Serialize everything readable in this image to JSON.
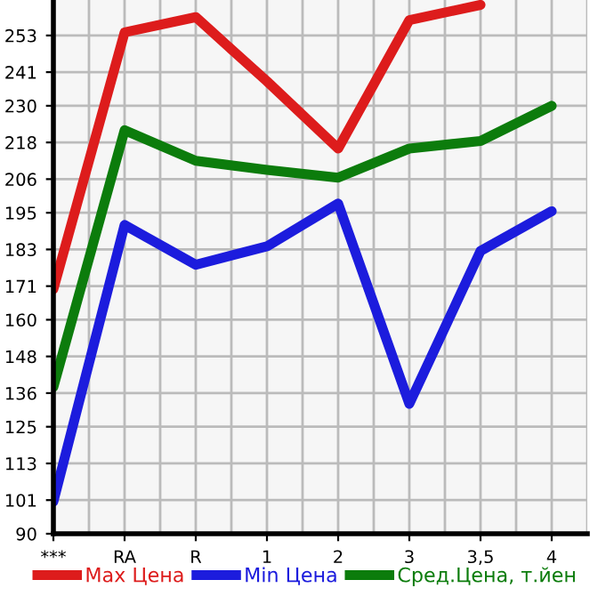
{
  "chart_data": {
    "type": "line",
    "categories": [
      "***",
      "RA",
      "R",
      "1",
      "2",
      "3",
      "3,5",
      "4"
    ],
    "series": [
      {
        "name": "Max Цена",
        "color": "#dd1c1c",
        "values": [
          170,
          254,
          259,
          238,
          216,
          258,
          263,
          null
        ]
      },
      {
        "name": "Min Цена",
        "color": "#1c1cdd",
        "values": [
          100.5,
          191,
          178,
          184,
          198,
          132.5,
          182.5,
          195.5
        ]
      },
      {
        "name": "Сред.Цена, т.йен",
        "color": "#0c7c0c",
        "values": [
          138,
          222,
          212,
          209,
          206.5,
          216,
          218.5,
          230
        ]
      }
    ],
    "ylim": [
      90,
      264.6
    ],
    "yticks": [
      90,
      101,
      113,
      125,
      136,
      148,
      160,
      171,
      183,
      195,
      206,
      218,
      230,
      241,
      253
    ],
    "grid": true,
    "legend": "bottom",
    "marker": "none",
    "line_style": "solid"
  }
}
